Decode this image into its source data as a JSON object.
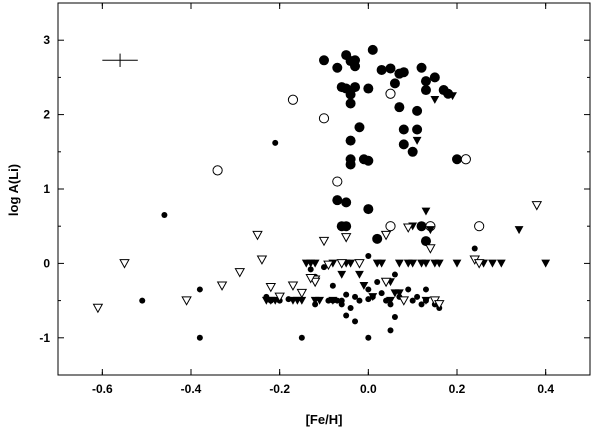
{
  "chart_data": {
    "type": "scatter",
    "title": "",
    "xlabel": "[Fe/H]",
    "ylabel": "log A(Li)",
    "xlim": [
      -0.7,
      0.5
    ],
    "ylim": [
      -1.5,
      3.5
    ],
    "x_ticks": [
      -0.6,
      -0.4,
      -0.2,
      0.0,
      0.2,
      0.4
    ],
    "x_tick_labels": [
      "-0.6",
      "-0.4",
      "-0.2",
      "0.0",
      "0.2",
      "0.4"
    ],
    "y_ticks": [
      -1,
      0,
      1,
      2,
      3
    ],
    "y_tick_labels": [
      "-1",
      "0",
      "1",
      "2",
      "3"
    ],
    "grid": false,
    "legend": "none",
    "error_bar": {
      "x": -0.56,
      "y": 2.73,
      "xerr": 0.04,
      "yerr": 0.09
    },
    "series": [
      {
        "marker": "large-filled-circle",
        "color": "#000000",
        "points": [
          [
            -0.1,
            2.73
          ],
          [
            -0.07,
            2.63
          ],
          [
            -0.05,
            2.8
          ],
          [
            -0.04,
            2.72
          ],
          [
            -0.03,
            2.65
          ],
          [
            -0.03,
            2.73
          ],
          [
            0.01,
            2.87
          ],
          [
            0.03,
            2.6
          ],
          [
            0.05,
            2.62
          ],
          [
            0.07,
            2.55
          ],
          [
            0.08,
            2.57
          ],
          [
            0.12,
            2.63
          ],
          [
            0.13,
            2.45
          ],
          [
            0.15,
            2.5
          ],
          [
            0.17,
            2.33
          ],
          [
            0.18,
            2.28
          ],
          [
            0.13,
            2.33
          ],
          [
            -0.06,
            2.37
          ],
          [
            -0.05,
            2.35
          ],
          [
            -0.04,
            2.27
          ],
          [
            -0.03,
            2.37
          ],
          [
            0.0,
            2.35
          ],
          [
            0.06,
            2.42
          ],
          [
            -0.04,
            2.15
          ],
          [
            0.07,
            2.1
          ],
          [
            0.11,
            2.05
          ],
          [
            -0.02,
            1.83
          ],
          [
            0.08,
            1.8
          ],
          [
            0.11,
            1.8
          ],
          [
            -0.04,
            1.65
          ],
          [
            0.08,
            1.6
          ],
          [
            0.1,
            1.5
          ],
          [
            -0.04,
            1.4
          ],
          [
            -0.04,
            1.33
          ],
          [
            -0.01,
            1.4
          ],
          [
            0.0,
            1.38
          ],
          [
            0.2,
            1.4
          ],
          [
            -0.07,
            0.85
          ],
          [
            -0.05,
            0.82
          ],
          [
            0.0,
            0.73
          ],
          [
            -0.06,
            0.5
          ],
          [
            -0.05,
            0.5
          ],
          [
            0.12,
            0.5
          ],
          [
            0.13,
            0.3
          ],
          [
            0.02,
            0.33
          ]
        ]
      },
      {
        "marker": "open-circle",
        "color": "#000000",
        "points": [
          [
            -0.17,
            2.2
          ],
          [
            -0.1,
            1.95
          ],
          [
            0.05,
            2.28
          ],
          [
            -0.34,
            1.25
          ],
          [
            -0.07,
            1.1
          ],
          [
            0.22,
            1.4
          ],
          [
            0.05,
            0.5
          ],
          [
            0.14,
            0.5
          ],
          [
            0.25,
            0.5
          ]
        ]
      },
      {
        "marker": "small-filled-circle",
        "color": "#000000",
        "points": [
          [
            -0.21,
            1.62
          ],
          [
            -0.46,
            0.65
          ],
          [
            -0.51,
            -0.5
          ],
          [
            -0.38,
            -0.35
          ],
          [
            -0.38,
            -1.0
          ],
          [
            -0.15,
            -1.0
          ],
          [
            -0.23,
            -0.45
          ],
          [
            -0.22,
            -0.5
          ],
          [
            -0.2,
            -0.5
          ],
          [
            -0.18,
            -0.48
          ],
          [
            -0.13,
            -0.08
          ],
          [
            -0.12,
            -0.18
          ],
          [
            -0.08,
            -0.3
          ],
          [
            -0.07,
            -0.5
          ],
          [
            -0.06,
            -0.5
          ],
          [
            -0.05,
            -0.7
          ],
          [
            -0.04,
            -0.6
          ],
          [
            -0.08,
            -0.5
          ],
          [
            -0.05,
            -0.42
          ],
          [
            -0.03,
            -0.45
          ],
          [
            -0.03,
            -0.78
          ],
          [
            -0.02,
            -0.5
          ],
          [
            0.0,
            -0.35
          ],
          [
            0.0,
            -0.48
          ],
          [
            0.01,
            -0.45
          ],
          [
            0.02,
            -0.25
          ],
          [
            0.03,
            -0.4
          ],
          [
            0.04,
            -0.5
          ],
          [
            0.05,
            -0.55
          ],
          [
            0.06,
            -0.72
          ],
          [
            0.07,
            -0.45
          ],
          [
            0.05,
            -0.9
          ],
          [
            0.1,
            -0.5
          ],
          [
            0.11,
            -0.45
          ],
          [
            0.12,
            -0.55
          ],
          [
            0.13,
            -0.5
          ],
          [
            0.13,
            -0.35
          ],
          [
            0.15,
            -0.55
          ],
          [
            0.16,
            -0.6
          ],
          [
            -0.1,
            -0.05
          ],
          [
            0.0,
            -1.0
          ],
          [
            0.24,
            0.2
          ],
          [
            -0.12,
            -0.55
          ],
          [
            -0.06,
            -0.55
          ],
          [
            0.09,
            -0.35
          ],
          [
            0.0,
            0.1
          ],
          [
            0.06,
            -0.15
          ],
          [
            -0.09,
            -0.5
          ]
        ]
      },
      {
        "marker": "filled-triangle-down",
        "color": "#000000",
        "points": [
          [
            0.15,
            2.2
          ],
          [
            0.19,
            2.25
          ],
          [
            0.11,
            1.65
          ],
          [
            0.14,
            0.45
          ],
          [
            0.34,
            0.45
          ],
          [
            -0.14,
            0.0
          ],
          [
            -0.13,
            0.0
          ],
          [
            -0.12,
            0.0
          ],
          [
            -0.08,
            0.0
          ],
          [
            -0.05,
            0.0
          ],
          [
            -0.04,
            0.0
          ],
          [
            -0.02,
            0.0
          ],
          [
            0.02,
            0.0
          ],
          [
            0.03,
            0.0
          ],
          [
            0.07,
            0.0
          ],
          [
            0.09,
            0.0
          ],
          [
            0.1,
            0.0
          ],
          [
            0.12,
            0.0
          ],
          [
            0.13,
            0.0
          ],
          [
            0.15,
            0.0
          ],
          [
            0.16,
            0.0
          ],
          [
            0.2,
            0.0
          ],
          [
            0.28,
            0.0
          ],
          [
            0.3,
            0.0
          ],
          [
            0.4,
            0.0
          ],
          [
            0.26,
            0.0
          ],
          [
            -0.23,
            -0.5
          ],
          [
            -0.22,
            -0.5
          ],
          [
            -0.21,
            -0.5
          ],
          [
            -0.17,
            -0.5
          ],
          [
            -0.16,
            -0.5
          ],
          [
            -0.11,
            -0.5
          ],
          [
            -0.08,
            -0.5
          ],
          [
            0.05,
            -0.5
          ],
          [
            0.06,
            -0.4
          ],
          [
            0.13,
            -0.5
          ],
          [
            -0.06,
            -0.15
          ],
          [
            -0.01,
            -0.3
          ],
          [
            -0.02,
            -0.15
          ],
          [
            0.05,
            -0.25
          ],
          [
            0.13,
            0.7
          ],
          [
            -0.15,
            -0.5
          ],
          [
            -0.12,
            -0.5
          ],
          [
            0.07,
            -0.4
          ],
          [
            0.1,
            0.5
          ],
          [
            0.01,
            -0.45
          ]
        ]
      },
      {
        "marker": "open-triangle-down",
        "color": "#000000",
        "points": [
          [
            -0.61,
            -0.6
          ],
          [
            -0.55,
            0.0
          ],
          [
            -0.41,
            -0.5
          ],
          [
            -0.33,
            -0.3
          ],
          [
            -0.29,
            -0.12
          ],
          [
            -0.25,
            0.38
          ],
          [
            -0.24,
            0.05
          ],
          [
            -0.22,
            -0.32
          ],
          [
            -0.2,
            -0.45
          ],
          [
            -0.17,
            -0.3
          ],
          [
            -0.15,
            -0.4
          ],
          [
            -0.12,
            -0.22
          ],
          [
            -0.12,
            -0.25
          ],
          [
            -0.09,
            -0.02
          ],
          [
            -0.1,
            0.3
          ],
          [
            -0.06,
            0.0
          ],
          [
            -0.05,
            0.35
          ],
          [
            0.04,
            0.38
          ],
          [
            0.14,
            0.2
          ],
          [
            0.15,
            -0.5
          ],
          [
            0.16,
            -0.55
          ],
          [
            0.24,
            0.05
          ],
          [
            0.25,
            0.0
          ],
          [
            0.38,
            0.78
          ],
          [
            0.09,
            0.48
          ],
          [
            0.04,
            -0.25
          ],
          [
            -0.02,
            0.0
          ],
          [
            -0.13,
            -0.2
          ],
          [
            0.08,
            -0.5
          ]
        ]
      }
    ]
  }
}
